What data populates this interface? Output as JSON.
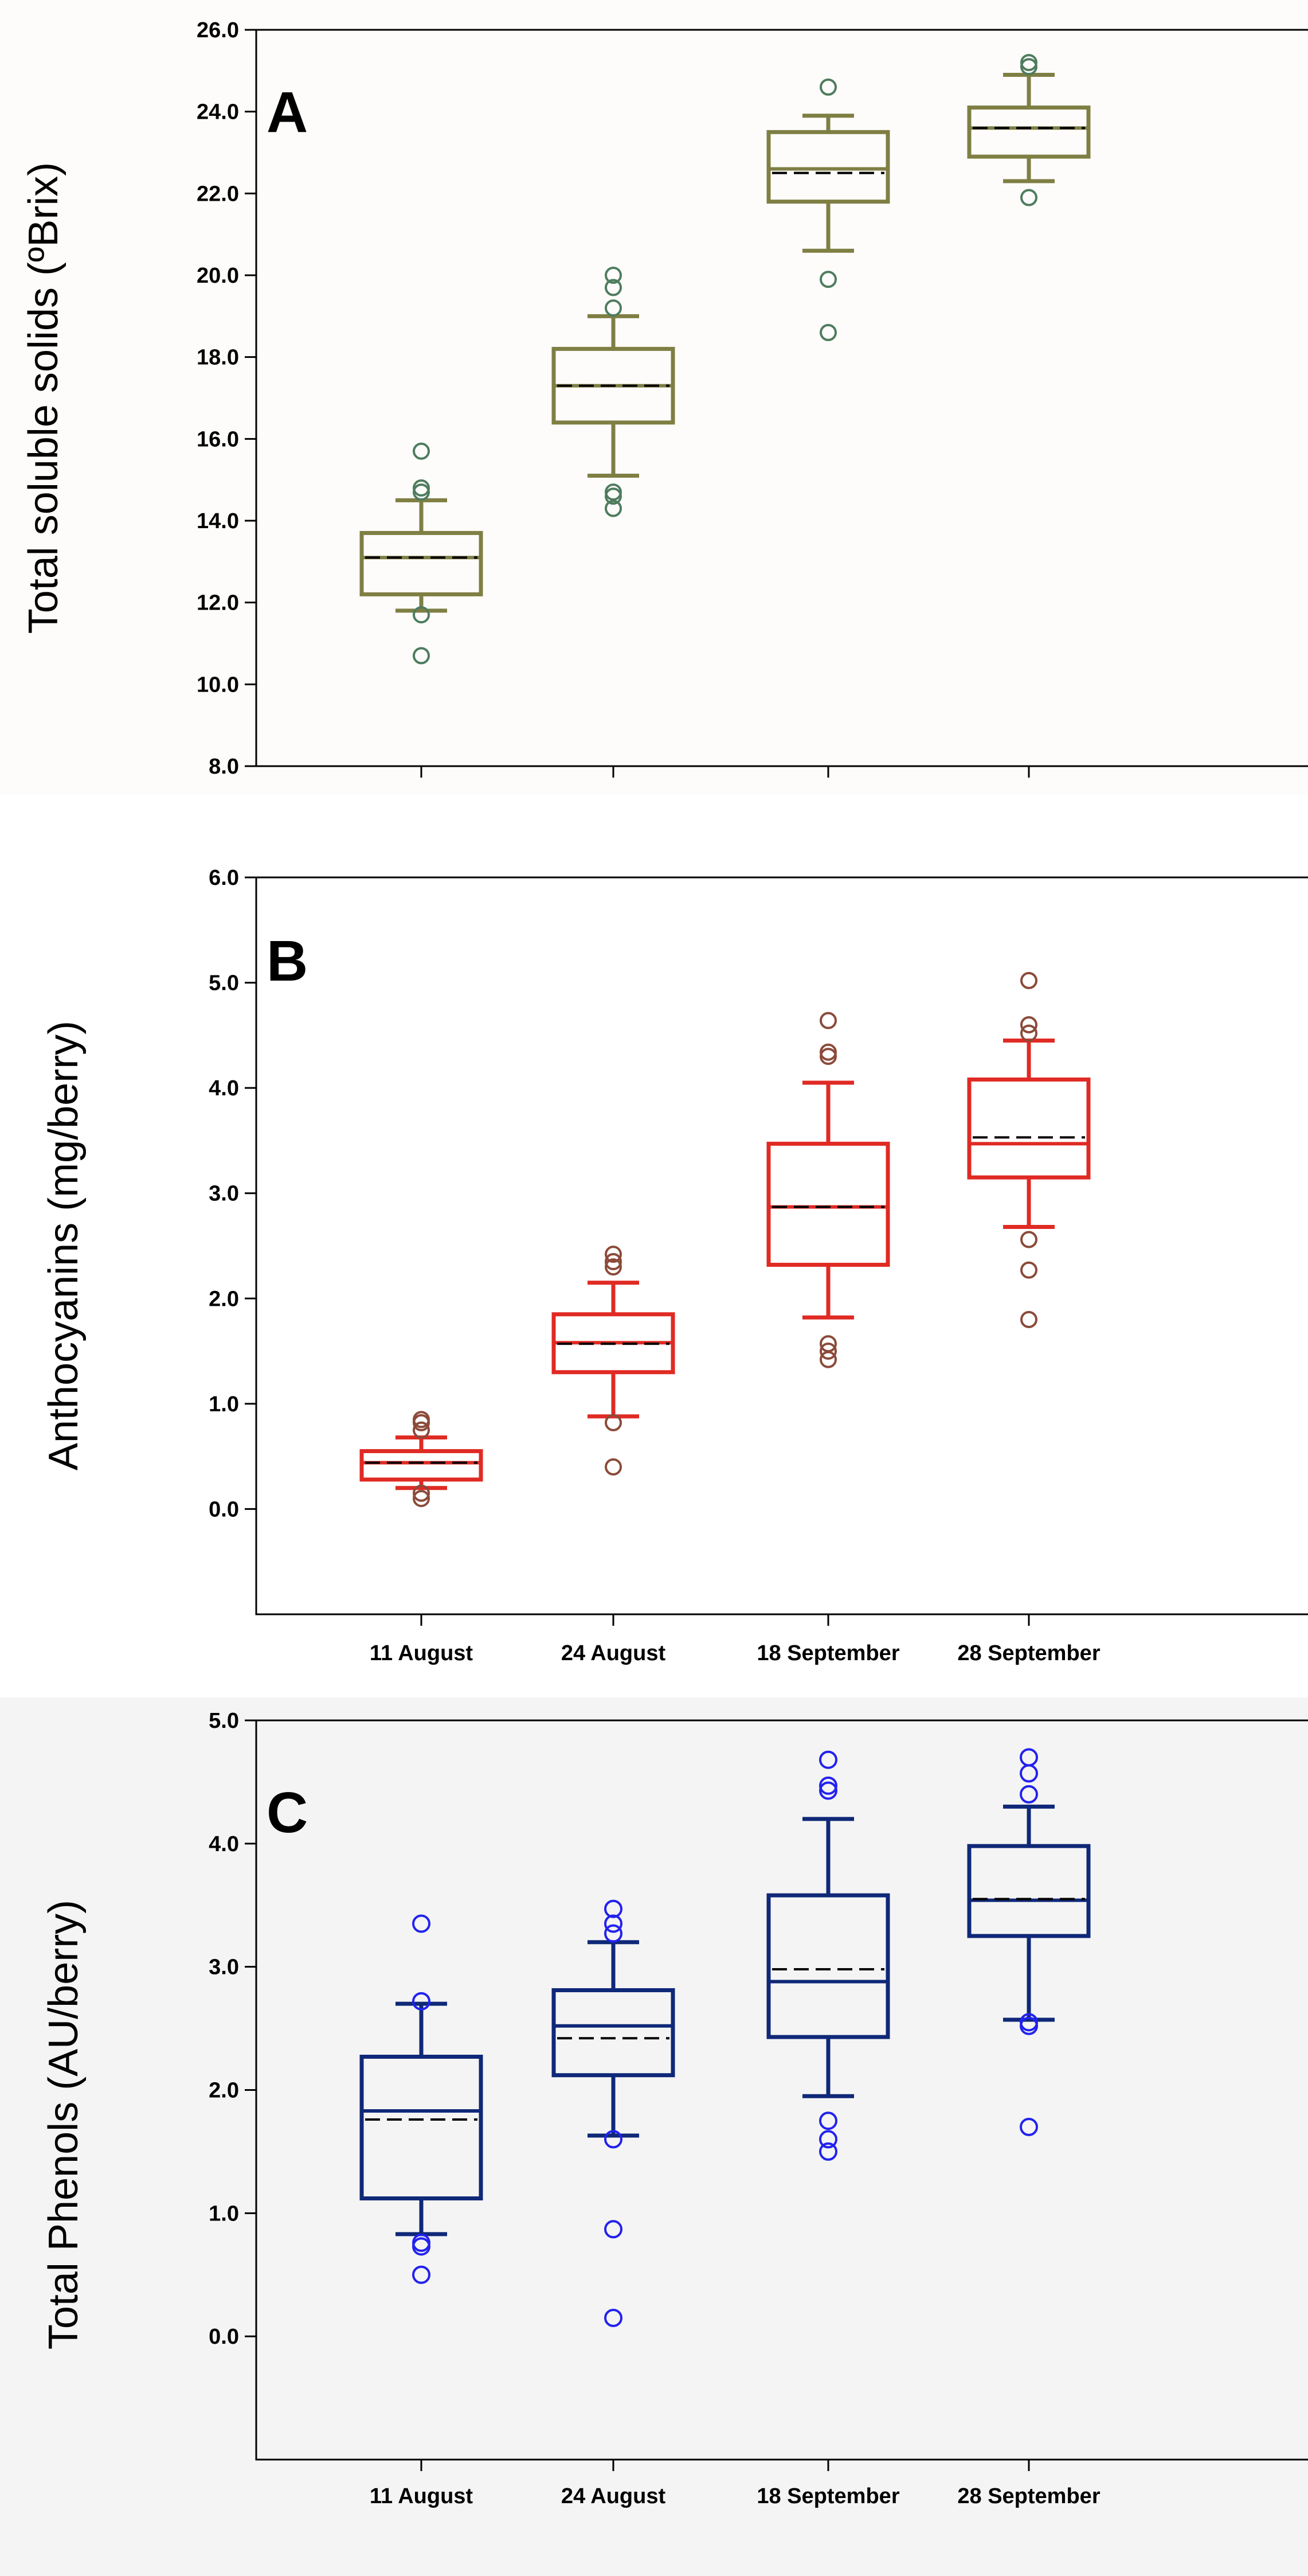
{
  "chart_data": [
    {
      "type": "box",
      "panel_label": "A",
      "ylabel": "Total soluble solids (ºBrix)",
      "xlabel": "",
      "ylim": [
        8.0,
        26.0
      ],
      "yticks": [
        "8.0",
        "10.0",
        "12.0",
        "14.0",
        "16.0",
        "18.0",
        "20.0",
        "22.0",
        "24.0",
        "26.0"
      ],
      "categories": [
        "11 August",
        "24 August",
        "18 September",
        "28 September"
      ],
      "colors": {
        "box": "#7f7f44",
        "outlier": "#4e7c5e",
        "background": "#fdfcfa"
      },
      "boxes": [
        {
          "category": "11 August",
          "whisker_low": 11.8,
          "q1": 12.2,
          "median": 13.1,
          "mean": 13.1,
          "q3": 13.7,
          "whisker_high": 14.5,
          "outliers": [
            10.7,
            11.7,
            14.7,
            14.8,
            15.7
          ]
        },
        {
          "category": "24 August",
          "whisker_low": 15.1,
          "q1": 16.4,
          "median": 17.3,
          "mean": 17.3,
          "q3": 18.2,
          "whisker_high": 19.0,
          "outliers": [
            14.3,
            14.6,
            14.7,
            19.2,
            19.7,
            20.0
          ]
        },
        {
          "category": "18 September",
          "whisker_low": 20.6,
          "q1": 21.8,
          "median": 22.6,
          "mean": 22.5,
          "q3": 23.5,
          "whisker_high": 23.9,
          "outliers": [
            18.6,
            19.9,
            24.6
          ]
        },
        {
          "category": "28 September",
          "whisker_low": 22.3,
          "q1": 22.9,
          "median": 23.6,
          "mean": 23.6,
          "q3": 24.1,
          "whisker_high": 24.9,
          "outliers": [
            21.9,
            25.1,
            25.2
          ]
        }
      ]
    },
    {
      "type": "box",
      "panel_label": "B",
      "ylabel": "Anthocyanins (mg/berry)",
      "xlabel": "",
      "ylim": [
        -1.0,
        6.0
      ],
      "yticks": [
        "0.0",
        "1.0",
        "2.0",
        "3.0",
        "4.0",
        "5.0",
        "6.0"
      ],
      "categories": [
        "11 August",
        "24 August",
        "18 September",
        "28 September"
      ],
      "colors": {
        "box": "#e02a24",
        "outlier": "#8b4a3a",
        "background": "#ffffff"
      },
      "boxes": [
        {
          "category": "11 August",
          "whisker_low": 0.2,
          "q1": 0.28,
          "median": 0.44,
          "mean": 0.44,
          "q3": 0.55,
          "whisker_high": 0.68,
          "outliers": [
            0.1,
            0.15,
            0.75,
            0.82,
            0.85
          ]
        },
        {
          "category": "24 August",
          "whisker_low": 0.88,
          "q1": 1.3,
          "median": 1.58,
          "mean": 1.57,
          "q3": 1.85,
          "whisker_high": 2.15,
          "outliers": [
            0.4,
            0.82,
            2.3,
            2.35,
            2.42
          ]
        },
        {
          "category": "18 September",
          "whisker_low": 1.82,
          "q1": 2.32,
          "median": 2.87,
          "mean": 2.87,
          "q3": 3.47,
          "whisker_high": 4.05,
          "outliers": [
            1.42,
            1.5,
            1.57,
            4.3,
            4.34,
            4.64
          ]
        },
        {
          "category": "28 September",
          "whisker_low": 2.68,
          "q1": 3.15,
          "median": 3.47,
          "mean": 3.53,
          "q3": 4.08,
          "whisker_high": 4.45,
          "outliers": [
            1.8,
            2.27,
            2.56,
            4.52,
            4.6,
            5.02
          ]
        }
      ]
    },
    {
      "type": "box",
      "panel_label": "C",
      "ylabel": "Total Phenols (AU/berry)",
      "xlabel": "",
      "ylim": [
        -1.0,
        5.0
      ],
      "yticks": [
        "0.0",
        "1.0",
        "2.0",
        "3.0",
        "4.0",
        "5.0"
      ],
      "categories": [
        "11 August",
        "24 August",
        "18 September",
        "28 September"
      ],
      "colors": {
        "box": "#0f2878",
        "outlier": "#2222ee",
        "background": "#f4f4f4"
      },
      "boxes": [
        {
          "category": "11 August",
          "whisker_low": 0.83,
          "q1": 1.12,
          "median": 1.83,
          "mean": 1.76,
          "q3": 2.27,
          "whisker_high": 2.7,
          "outliers": [
            0.5,
            0.73,
            0.76,
            2.72,
            3.35
          ]
        },
        {
          "category": "24 August",
          "whisker_low": 1.63,
          "q1": 2.12,
          "median": 2.52,
          "mean": 2.42,
          "q3": 2.81,
          "whisker_high": 3.2,
          "outliers": [
            0.15,
            0.87,
            1.6,
            3.27,
            3.35,
            3.47
          ]
        },
        {
          "category": "18 September",
          "whisker_low": 1.95,
          "q1": 2.43,
          "median": 2.88,
          "mean": 2.98,
          "q3": 3.58,
          "whisker_high": 4.2,
          "outliers": [
            1.5,
            1.6,
            1.75,
            4.43,
            4.47,
            4.68
          ]
        },
        {
          "category": "28 September",
          "whisker_low": 2.57,
          "q1": 3.25,
          "median": 3.54,
          "mean": 3.55,
          "q3": 3.98,
          "whisker_high": 4.3,
          "outliers": [
            1.7,
            2.52,
            2.55,
            4.4,
            4.57,
            4.7
          ]
        }
      ]
    }
  ]
}
